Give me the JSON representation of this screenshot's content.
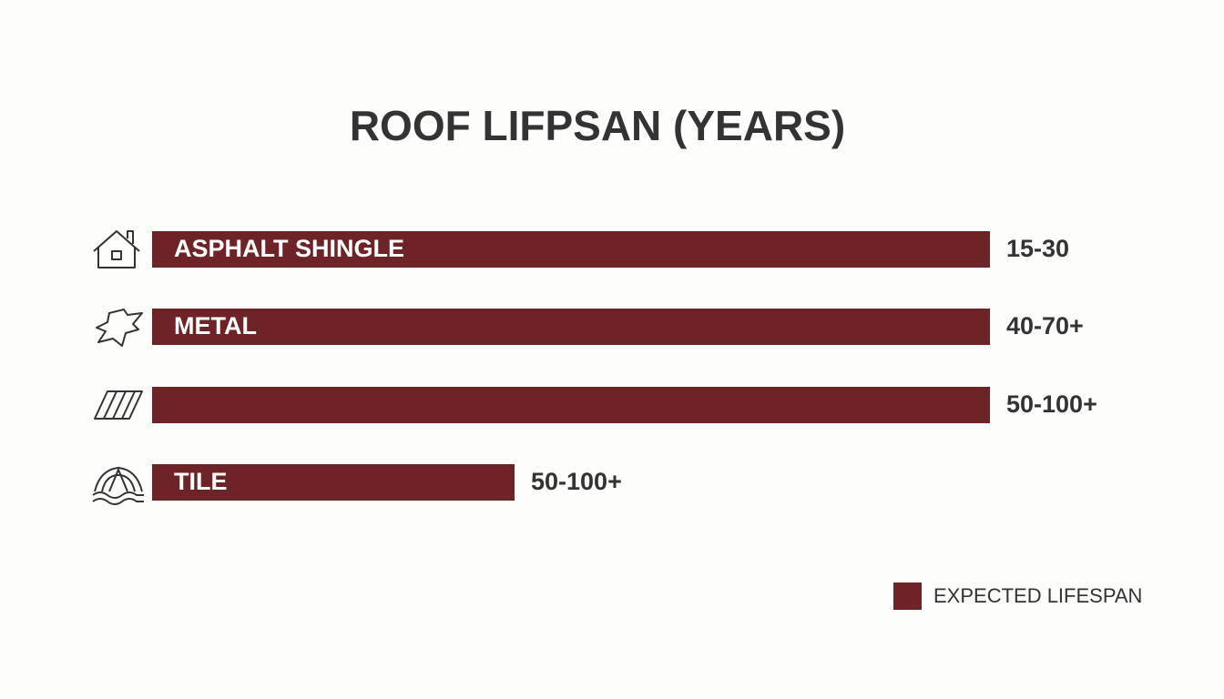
{
  "title": "ROOF LIFPSAN (YEARS)",
  "rows": [
    {
      "label": "ASPHALT SHINGLE",
      "lifespan": "15-30"
    },
    {
      "label": "METAL",
      "lifespan": "40-70+"
    },
    {
      "lifespan": "50-100+"
    },
    {
      "label": "TILE",
      "lifespan": "50-100+"
    }
  ],
  "legend": "EXPECTED LIFESPAN"
}
